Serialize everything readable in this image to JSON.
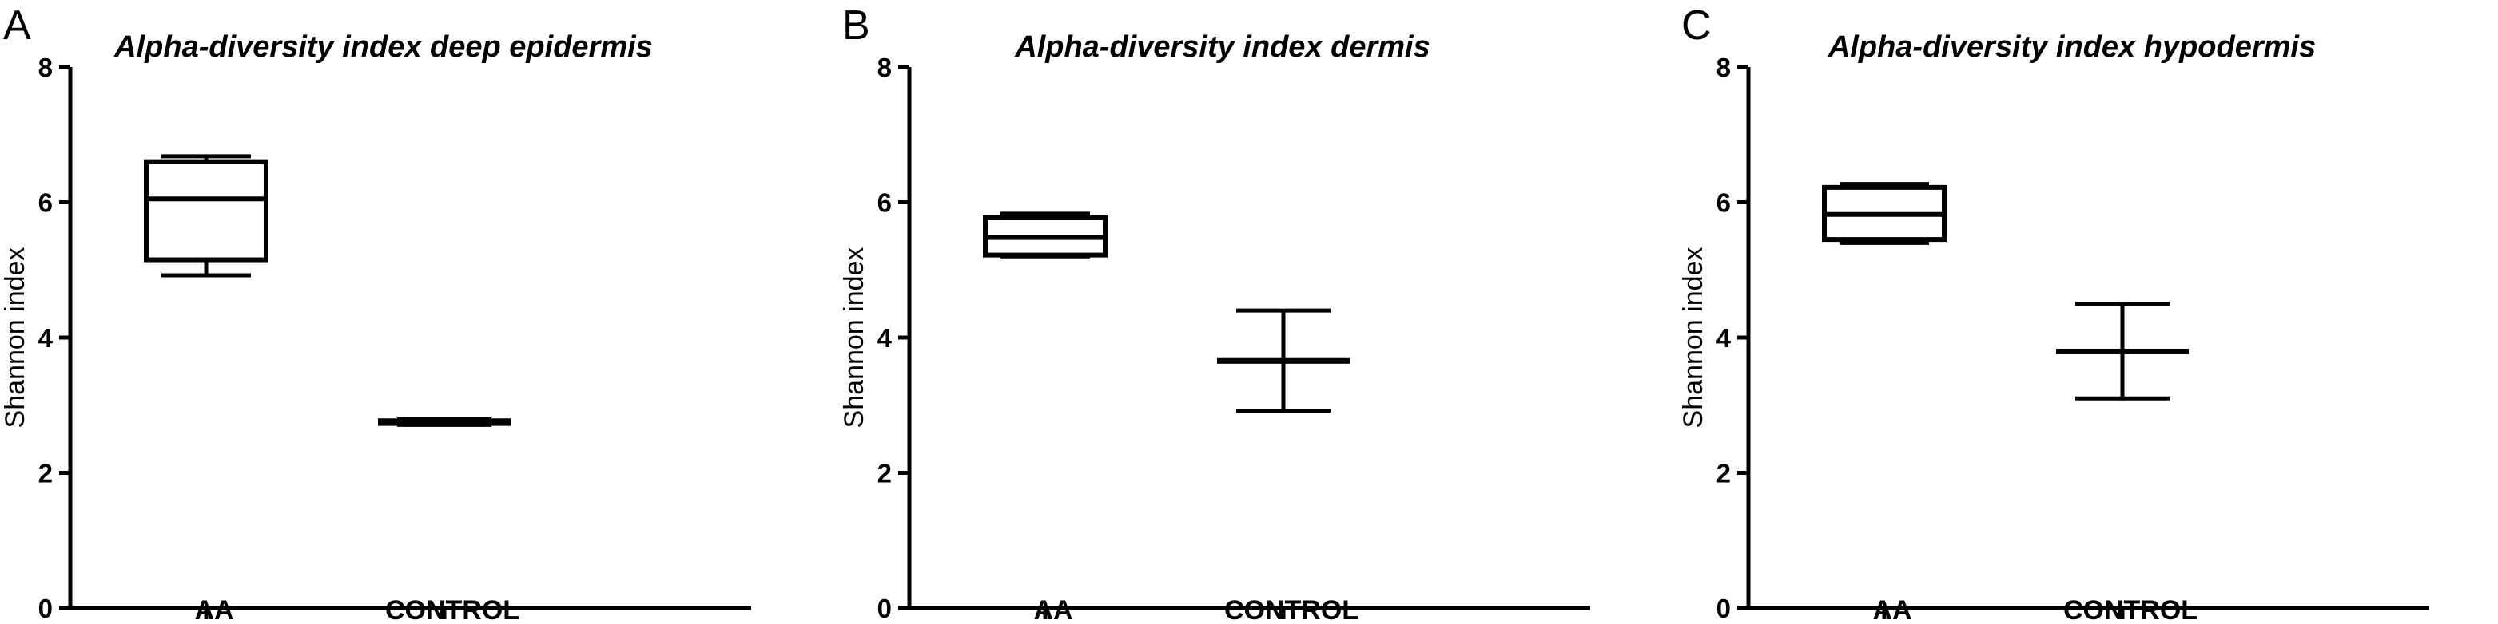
{
  "chart_data": [
    {
      "type": "box",
      "panel_label": "A",
      "title": "Alpha-diversity index deep epidermis",
      "xlabel": "",
      "ylabel": "Shannon index",
      "ylim": [
        0,
        8
      ],
      "yticks": [
        0,
        2,
        4,
        6,
        8
      ],
      "categories": [
        "AA",
        "CONTROL"
      ],
      "boxes": [
        {
          "min": 4.92,
          "q1": 5.15,
          "median": 6.05,
          "q3": 6.6,
          "max": 6.68
        },
        {
          "min": 2.71,
          "q1": 2.73,
          "median": 2.75,
          "q3": 2.77,
          "max": 2.79
        }
      ]
    },
    {
      "type": "box",
      "panel_label": "B",
      "title": "Alpha-diversity index dermis",
      "xlabel": "",
      "ylabel": "Shannon index",
      "ylim": [
        0,
        8
      ],
      "yticks": [
        0,
        2,
        4,
        6,
        8
      ],
      "categories": [
        "AA",
        "CONTROL"
      ],
      "boxes": [
        {
          "min": 5.2,
          "q1": 5.22,
          "median": 5.48,
          "q3": 5.77,
          "max": 5.83
        },
        {
          "min": 2.92,
          "q1": 3.66,
          "median": 3.66,
          "q3": 3.66,
          "max": 4.4
        }
      ]
    },
    {
      "type": "box",
      "panel_label": "C",
      "title": "Alpha-diversity index hypodermis",
      "xlabel": "",
      "ylabel": "Shannon index",
      "ylim": [
        0,
        8
      ],
      "yticks": [
        0,
        2,
        4,
        6,
        8
      ],
      "categories": [
        "AA",
        "CONTROL"
      ],
      "boxes": [
        {
          "min": 5.4,
          "q1": 5.45,
          "median": 5.82,
          "q3": 6.22,
          "max": 6.27
        },
        {
          "min": 3.1,
          "q1": 3.8,
          "median": 3.8,
          "q3": 3.8,
          "max": 4.5
        }
      ]
    }
  ]
}
